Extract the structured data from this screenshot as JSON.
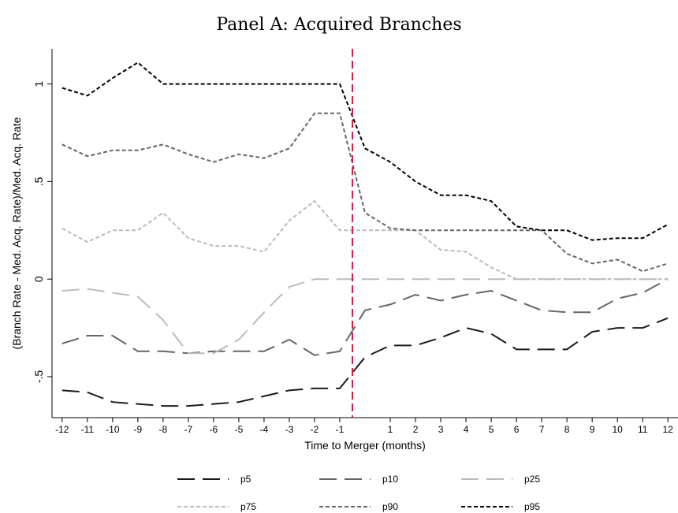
{
  "chart_data": {
    "type": "line",
    "title": "Panel A: Acquired Branches",
    "x_label": "Time to Merger (months)",
    "y_label": "(Branch Rate - Med. Acq. Rate)/Med. Acq. Rate",
    "x": [
      -12,
      -11,
      -10,
      -9,
      -8,
      -7,
      -6,
      -5,
      -4,
      -3,
      -2,
      -1,
      0,
      1,
      2,
      3,
      4,
      5,
      6,
      7,
      8,
      9,
      10,
      11,
      12
    ],
    "series": [
      {
        "name": "p5",
        "color": "#1a1a1a",
        "dash": "long",
        "values": [
          -0.57,
          -0.58,
          -0.63,
          -0.64,
          -0.65,
          -0.65,
          -0.64,
          -0.63,
          -0.6,
          -0.57,
          -0.56,
          -0.56,
          -0.4,
          -0.34,
          -0.34,
          -0.3,
          -0.25,
          -0.28,
          -0.36,
          -0.36,
          -0.36,
          -0.27,
          -0.25,
          -0.25,
          -0.2
        ]
      },
      {
        "name": "p10",
        "color": "#666666",
        "dash": "long",
        "values": [
          -0.33,
          -0.29,
          -0.29,
          -0.37,
          -0.37,
          -0.38,
          -0.37,
          -0.37,
          -0.37,
          -0.31,
          -0.39,
          -0.37,
          -0.16,
          -0.13,
          -0.08,
          -0.11,
          -0.08,
          -0.06,
          -0.11,
          -0.16,
          -0.17,
          -0.17,
          -0.1,
          -0.07,
          0
        ]
      },
      {
        "name": "p25",
        "color": "#bbbbbb",
        "dash": "long",
        "values": [
          -0.06,
          -0.05,
          -0.07,
          -0.09,
          -0.21,
          -0.38,
          -0.38,
          -0.31,
          -0.17,
          -0.04,
          0,
          0,
          0,
          0,
          0,
          0,
          0,
          0,
          0,
          0,
          0,
          0,
          0,
          0,
          0
        ]
      },
      {
        "name": "p75",
        "color": "#bbbbbb",
        "dash": "short",
        "values": [
          0.26,
          0.19,
          0.25,
          0.25,
          0.34,
          0.21,
          0.17,
          0.17,
          0.14,
          0.3,
          0.4,
          0.25,
          0.25,
          0.25,
          0.25,
          0.15,
          0.14,
          0.06,
          0,
          0,
          0,
          0,
          0,
          0,
          0
        ]
      },
      {
        "name": "p90",
        "color": "#666666",
        "dash": "short",
        "values": [
          0.69,
          0.63,
          0.66,
          0.66,
          0.69,
          0.64,
          0.6,
          0.64,
          0.62,
          0.67,
          0.85,
          0.85,
          0.34,
          0.26,
          0.25,
          0.25,
          0.25,
          0.25,
          0.25,
          0.25,
          0.13,
          0.08,
          0.1,
          0.04,
          0.08
        ]
      },
      {
        "name": "p95",
        "color": "#000000",
        "dash": "short",
        "values": [
          0.98,
          0.94,
          1.03,
          1.11,
          1.0,
          1.0,
          1.0,
          1.0,
          1.0,
          1.0,
          1.0,
          1.0,
          0.67,
          0.6,
          0.5,
          0.43,
          0.43,
          0.4,
          0.27,
          0.25,
          0.25,
          0.2,
          0.21,
          0.21,
          0.28
        ]
      }
    ],
    "xlim": [
      -12.4,
      12.4
    ],
    "ylim": [
      -0.71,
      1.18
    ],
    "xticks": [
      -12,
      -11,
      -10,
      -9,
      -8,
      -7,
      -6,
      -5,
      -4,
      -3,
      -2,
      -1,
      1,
      2,
      3,
      4,
      5,
      6,
      7,
      8,
      9,
      10,
      11,
      12
    ],
    "yticks": [
      {
        "value": -0.5,
        "label": "-.5"
      },
      0,
      {
        "value": 0.5,
        "label": ".5"
      },
      1
    ],
    "vline": {
      "value": -0.5,
      "color": "#d0204a"
    }
  }
}
